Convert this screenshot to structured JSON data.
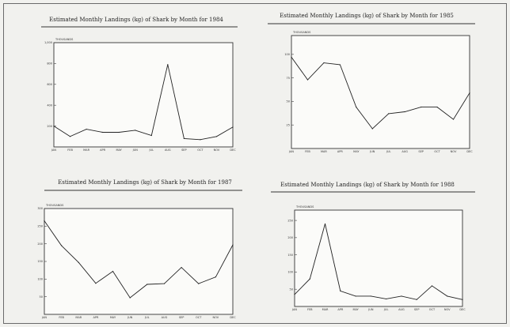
{
  "chart_data": [
    {
      "type": "line",
      "title": "Estimated Monthly Landings (kg) of Shark by Month for 1984",
      "ylabel": "THOUSANDS",
      "categories": [
        "JAN",
        "FEB",
        "MAR",
        "APR",
        "MAY",
        "JUN",
        "JUL",
        "AUG",
        "SEP",
        "OCT",
        "NOV",
        "DEC"
      ],
      "values": [
        200,
        100,
        170,
        140,
        140,
        160,
        110,
        790,
        80,
        70,
        100,
        190
      ],
      "ylim": [
        0,
        1000
      ],
      "yticks": [
        "1,000",
        "800",
        "600",
        "400",
        "200"
      ]
    },
    {
      "type": "line",
      "title": "Estimated Monthly Landings (kg) of Shark by Month for 1985",
      "ylabel": "THOUSANDS",
      "categories": [
        "JAN",
        "FEB",
        "MAR",
        "APR",
        "MAY",
        "JUN",
        "JUL",
        "AUG",
        "SEP",
        "OCT",
        "NOV",
        "DEC"
      ],
      "values": [
        97,
        73,
        91,
        89,
        44,
        21,
        37,
        39,
        44,
        44,
        31,
        59
      ],
      "ylim": [
        0,
        120
      ],
      "yticks": [
        "100",
        "75",
        "50",
        "25"
      ]
    },
    {
      "type": "line",
      "title": "Estimated Monthly Landings (kg) of Shark by Month for 1987",
      "ylabel": "THOUSANDS",
      "categories": [
        "JAN",
        "FEB",
        "MAR",
        "APR",
        "MAY",
        "JUN",
        "JUL",
        "AUG",
        "SEP",
        "OCT",
        "NOV",
        "DEC"
      ],
      "values": [
        265,
        195,
        147,
        88,
        122,
        47,
        85,
        87,
        133,
        87,
        106,
        197
      ],
      "ylim": [
        0,
        300
      ],
      "yticks": [
        "300",
        "250",
        "200",
        "150",
        "100",
        "50"
      ]
    },
    {
      "type": "line",
      "title": "Estimated Monthly Landings (kg) of Shark by Month for 1988",
      "ylabel": "THOUSANDS",
      "categories": [
        "JAN",
        "FEB",
        "MAR",
        "APR",
        "MAY",
        "JUN",
        "JUL",
        "AUG",
        "SEP",
        "OCT",
        "NOV",
        "DEC"
      ],
      "values": [
        35,
        80,
        240,
        45,
        30,
        30,
        22,
        30,
        20,
        60,
        30,
        20
      ],
      "ylim": [
        0,
        280
      ],
      "yticks": [
        "250",
        "200",
        "150",
        "100",
        "50"
      ]
    }
  ]
}
